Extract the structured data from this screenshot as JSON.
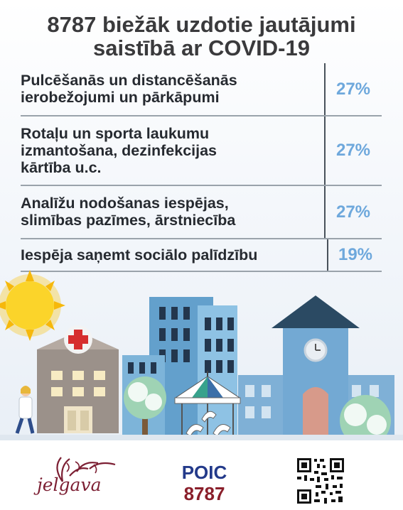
{
  "title": {
    "line1": "8787 biežāk uzdotie jautājumi",
    "line2": "saistībā ar COVID-19"
  },
  "rows": [
    {
      "lines": [
        "Pulcēšanās un distancēšanās",
        "ierobežojumi un pārkāpumi"
      ],
      "value": "27%"
    },
    {
      "lines": [
        "Rotaļu un sporta laukumu",
        "izmantošana, dezinfekcijas",
        "kārtība u.c."
      ],
      "value": "27%"
    },
    {
      "lines": [
        "Analīžu nodošanas iespējas,",
        "slimības pazīmes, ārstniecība"
      ],
      "value": "27%"
    },
    {
      "lines": [
        "Iespēja saņemt sociālo palīdzību"
      ],
      "value": "19%"
    }
  ],
  "footer": {
    "logo_text": "jelgava",
    "poic": "POIC",
    "number": "8787"
  },
  "colors": {
    "value": "#6ea8dc",
    "title": "#3a3a3c",
    "poic": "#233a8a",
    "number": "#8a1f2b"
  }
}
